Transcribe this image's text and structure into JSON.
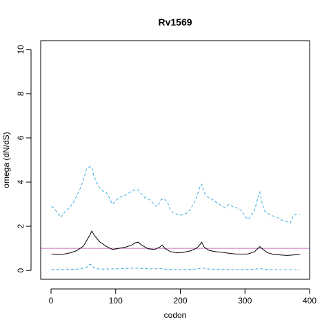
{
  "chart_data": {
    "type": "line",
    "title": "Rv1569",
    "xlabel": "codon",
    "ylabel": "omega (dN/dS)",
    "xlim": [
      -16,
      400
    ],
    "ylim": [
      -0.4,
      10.4
    ],
    "xticks": [
      0,
      100,
      200,
      300,
      400
    ],
    "yticks": [
      0,
      2,
      4,
      6,
      8,
      10
    ],
    "grid": false,
    "legend": "none",
    "reference_line": {
      "y": 1,
      "color": "#d070c0"
    },
    "series": [
      {
        "style": "solid",
        "color": "#000000",
        "x": [
          1,
          10,
          20,
          30,
          40,
          50,
          55,
          60,
          63,
          68,
          75,
          85,
          95,
          105,
          115,
          125,
          130,
          135,
          140,
          150,
          160,
          168,
          172,
          176,
          185,
          195,
          205,
          215,
          225,
          230,
          233,
          237,
          245,
          255,
          265,
          275,
          285,
          295,
          305,
          315,
          320,
          323,
          328,
          335,
          345,
          355,
          365,
          375,
          385
        ],
        "y": [
          0.75,
          0.72,
          0.74,
          0.8,
          0.9,
          1.1,
          1.35,
          1.6,
          1.78,
          1.55,
          1.3,
          1.1,
          0.95,
          1.0,
          1.05,
          1.15,
          1.25,
          1.28,
          1.15,
          0.98,
          0.95,
          1.05,
          1.15,
          1.0,
          0.85,
          0.8,
          0.82,
          0.88,
          1.0,
          1.15,
          1.28,
          1.05,
          0.9,
          0.85,
          0.82,
          0.78,
          0.75,
          0.74,
          0.75,
          0.85,
          1.0,
          1.08,
          0.95,
          0.8,
          0.72,
          0.7,
          0.68,
          0.7,
          0.73
        ]
      },
      {
        "style": "dashed",
        "color": "#3aa8e0",
        "x": [
          1,
          5,
          10,
          15,
          20,
          25,
          30,
          35,
          40,
          45,
          50,
          55,
          60,
          63,
          66,
          70,
          75,
          80,
          85,
          90,
          95,
          100,
          105,
          110,
          115,
          120,
          125,
          130,
          135,
          140,
          145,
          150,
          155,
          160,
          165,
          170,
          175,
          180,
          185,
          190,
          195,
          200,
          205,
          210,
          215,
          220,
          225,
          230,
          233,
          236,
          240,
          245,
          250,
          255,
          260,
          265,
          270,
          275,
          280,
          285,
          290,
          295,
          300,
          305,
          310,
          315,
          320,
          323,
          326,
          330,
          335,
          340,
          345,
          350,
          355,
          360,
          365,
          370,
          375,
          380,
          385
        ],
        "y": [
          2.9,
          2.8,
          2.6,
          2.4,
          2.6,
          2.75,
          2.9,
          3.1,
          3.4,
          3.7,
          4.1,
          4.6,
          4.7,
          4.68,
          4.3,
          4.0,
          3.75,
          3.6,
          3.55,
          3.3,
          3.0,
          3.15,
          3.3,
          3.35,
          3.4,
          3.5,
          3.6,
          3.65,
          3.65,
          3.45,
          3.3,
          3.25,
          3.15,
          2.95,
          2.9,
          3.2,
          3.25,
          3.1,
          2.7,
          2.6,
          2.55,
          2.5,
          2.55,
          2.6,
          2.75,
          3.0,
          3.3,
          3.75,
          3.9,
          3.6,
          3.35,
          3.3,
          3.2,
          3.1,
          3.0,
          2.9,
          2.85,
          3.0,
          2.9,
          2.85,
          2.8,
          2.7,
          2.45,
          2.3,
          2.5,
          2.75,
          3.3,
          3.55,
          3.1,
          2.7,
          2.6,
          2.5,
          2.45,
          2.4,
          2.3,
          2.25,
          2.2,
          2.15,
          2.5,
          2.55,
          2.55
        ]
      },
      {
        "style": "dashed",
        "color": "#3aa8e0",
        "x": [
          1,
          10,
          20,
          30,
          40,
          50,
          55,
          60,
          63,
          66,
          70,
          80,
          95,
          110,
          125,
          130,
          140,
          155,
          170,
          175,
          185,
          200,
          215,
          228,
          233,
          238,
          250,
          265,
          280,
          295,
          310,
          320,
          323,
          328,
          340,
          355,
          370,
          385
        ],
        "y": [
          0.05,
          0.04,
          0.04,
          0.05,
          0.06,
          0.1,
          0.15,
          0.28,
          0.25,
          0.12,
          0.08,
          0.06,
          0.07,
          0.08,
          0.1,
          0.11,
          0.09,
          0.07,
          0.08,
          0.06,
          0.05,
          0.04,
          0.05,
          0.07,
          0.13,
          0.08,
          0.05,
          0.05,
          0.04,
          0.04,
          0.05,
          0.07,
          0.1,
          0.06,
          0.04,
          0.03,
          0.03,
          0.03
        ]
      }
    ]
  }
}
